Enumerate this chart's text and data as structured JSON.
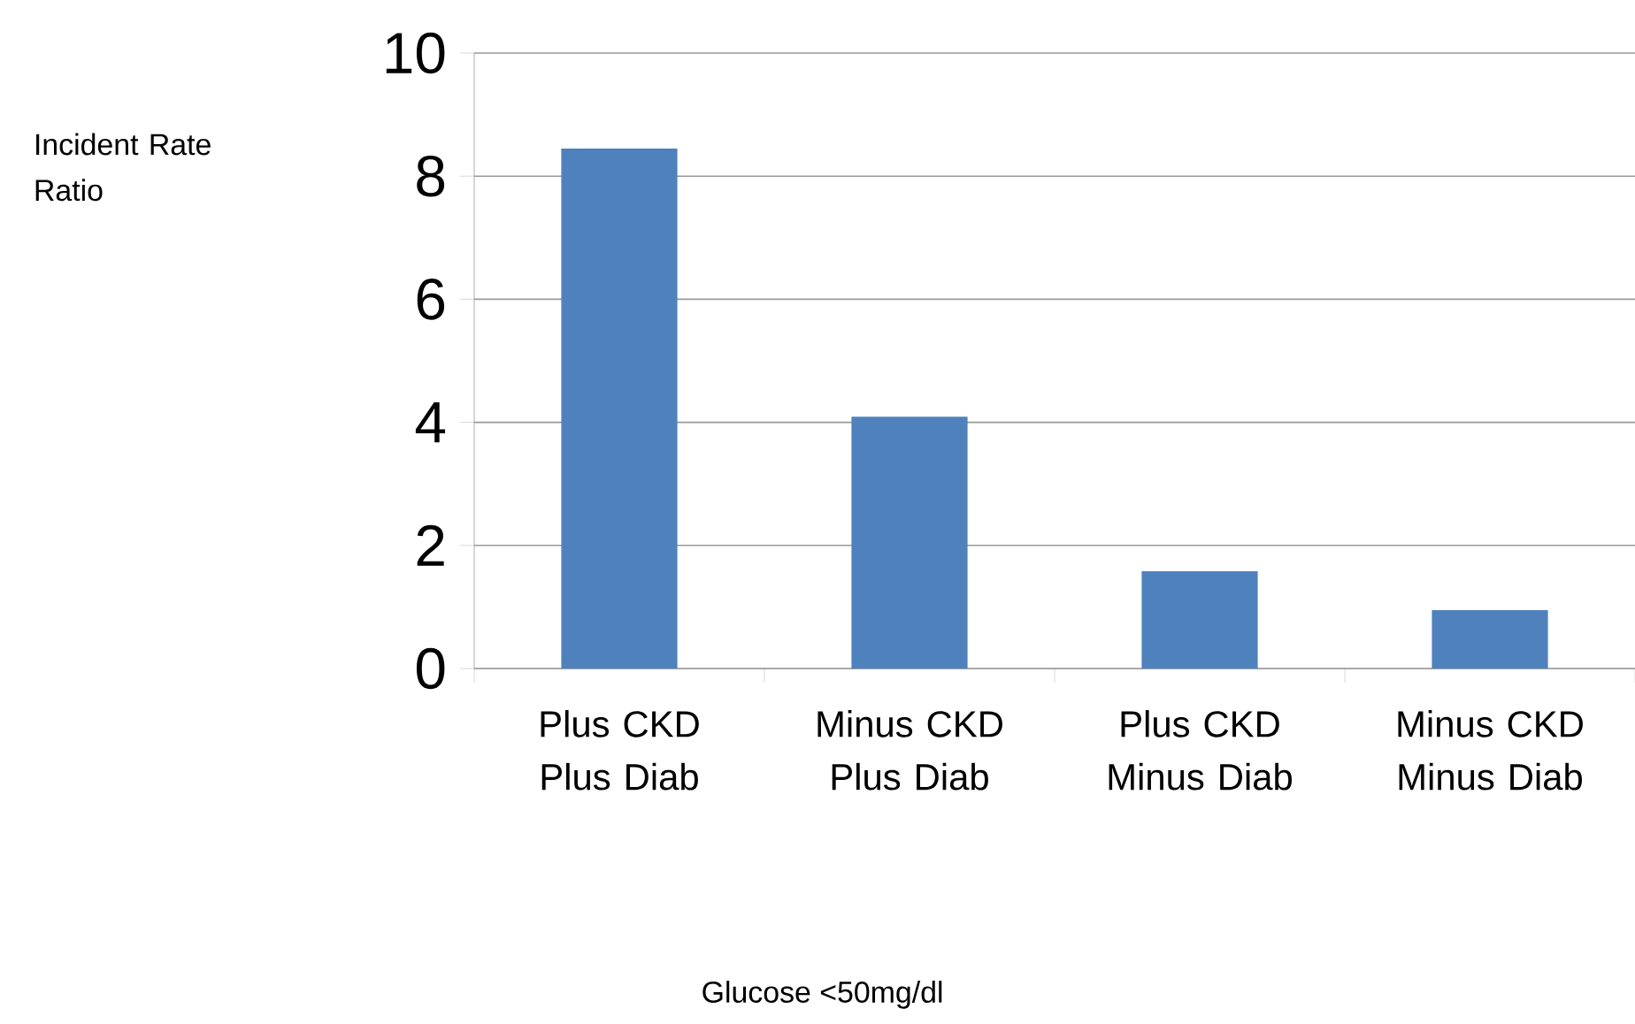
{
  "chart_data": {
    "type": "bar",
    "annotations": [
      "Glucose <50mg/dl",
      "Incident Rate Ratio"
    ],
    "categories": [
      "Plus CKD Plus Diab",
      "Minus CKD Plus Diab",
      "Plus CKD Minus Diab",
      "Minus CKD Minus Diab"
    ],
    "values": [
      8.45,
      4.09,
      1.58,
      0.95
    ],
    "color": "#4f81bd",
    "ylim": [
      0,
      10
    ],
    "yticks": [
      0,
      2,
      4,
      6,
      8,
      10
    ],
    "grid": "y"
  }
}
